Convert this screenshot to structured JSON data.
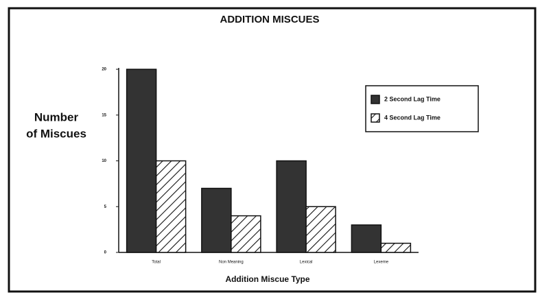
{
  "chart_data": {
    "type": "bar",
    "title": "ADDITION MISCUES",
    "y_label": [
      "Number",
      "of Miscues"
    ],
    "x_label": "Addition Miscue Type",
    "categories": [
      "Total",
      "Non Meaning",
      "Lexical",
      "Lexeme"
    ],
    "series": [
      {
        "name": "2 Second Lag Time",
        "color": "#333333",
        "values": [
          20,
          7,
          10,
          3
        ]
      },
      {
        "name": "4 Second Lag Time",
        "color": "#ffffff",
        "hatch": true,
        "values": [
          10,
          4,
          5,
          1
        ]
      }
    ],
    "ylim": [
      0,
      20
    ],
    "yticks": [
      0,
      5,
      10,
      15,
      20
    ],
    "legend": "upper right"
  }
}
